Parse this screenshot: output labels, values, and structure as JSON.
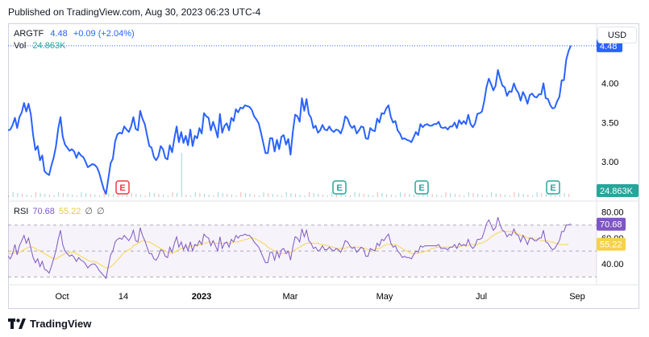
{
  "published": "Published on TradingView.com, Aug 30, 2023 06:23 UTC-4",
  "legend": {
    "symbol": "ARGTF",
    "price": "4.48",
    "change": "+0.09 (+2.04%)",
    "vol_label": "Vol",
    "vol_value": "24.863K"
  },
  "currency_button": "USD",
  "rsi_legend": {
    "label": "RSI",
    "rsi_value": "70.68",
    "ma_value": "55.22",
    "icon1": "∅",
    "icon2": "∅"
  },
  "footer": {
    "brand": "TradingView"
  },
  "colors": {
    "price_line": "#2962ff",
    "volume": "#26a69a",
    "rsi": "#7e57c2",
    "rsi_ma": "#f7d74b",
    "earnings_up": "#26a69a",
    "earnings_down": "#f23645"
  },
  "chart_data": [
    {
      "type": "line",
      "name": "price",
      "x_ticks": [
        "Oct",
        "14",
        "2023",
        "Mar",
        "May",
        "Jul",
        "Sep"
      ],
      "y_ticks": [
        "3.00",
        "3.50",
        "4.00"
      ],
      "ylim": [
        2.55,
        4.55
      ],
      "last_price_label": "4.48",
      "volume_label": "24.863K",
      "earnings_markers": [
        "E",
        "E",
        "E",
        "E"
      ],
      "values": [
        3.4,
        3.41,
        3.47,
        3.56,
        3.43,
        3.57,
        3.63,
        3.75,
        3.64,
        3.74,
        3.6,
        3.34,
        3.15,
        3.2,
        3.02,
        3.08,
        2.88,
        2.85,
        2.83,
        2.95,
        3.05,
        3.19,
        3.42,
        3.57,
        3.32,
        3.22,
        3.18,
        3.14,
        3.16,
        3.13,
        3.05,
        3.12,
        3.08,
        3.06,
        3.0,
        2.93,
        2.95,
        2.97,
        2.96,
        2.93,
        2.86,
        2.75,
        2.65,
        2.59,
        2.78,
        2.98,
        3.04,
        3.26,
        3.35,
        3.37,
        3.36,
        3.45,
        3.41,
        3.38,
        3.45,
        3.57,
        3.42,
        3.4,
        3.65,
        3.55,
        3.48,
        3.34,
        3.2,
        3.18,
        3.06,
        3.02,
        3.07,
        3.2,
        3.16,
        3.05,
        3.03,
        3.21,
        3.12,
        3.3,
        3.45,
        3.25,
        3.38,
        3.24,
        3.33,
        3.21,
        3.41,
        3.2,
        3.33,
        3.3,
        3.43,
        3.36,
        3.62,
        3.58,
        3.56,
        3.4,
        3.51,
        3.42,
        3.31,
        3.61,
        3.37,
        3.46,
        3.49,
        3.4,
        3.56,
        3.52,
        3.67,
        3.63,
        3.69,
        3.68,
        3.72,
        3.71,
        3.7,
        3.66,
        3.58,
        3.54,
        3.49,
        3.37,
        3.24,
        3.11,
        3.11,
        3.3,
        3.3,
        3.13,
        3.28,
        3.16,
        3.32,
        3.34,
        3.22,
        3.29,
        3.09,
        3.38,
        3.6,
        3.58,
        3.51,
        3.81,
        3.65,
        3.8,
        3.61,
        3.56,
        3.43,
        3.46,
        3.37,
        3.4,
        3.47,
        3.41,
        3.4,
        3.45,
        3.4,
        3.38,
        3.41,
        3.4,
        3.36,
        3.44,
        3.58,
        3.55,
        3.47,
        3.43,
        3.46,
        3.36,
        3.4,
        3.45,
        3.44,
        3.3,
        3.29,
        3.43,
        3.4,
        3.39,
        3.55,
        3.5,
        3.62,
        3.61,
        3.68,
        3.72,
        3.57,
        3.5,
        3.52,
        3.4,
        3.36,
        3.29,
        3.3,
        3.28,
        3.27,
        3.25,
        3.31,
        3.38,
        3.34,
        3.48,
        3.44,
        3.47,
        3.48,
        3.46,
        3.46,
        3.48,
        3.48,
        3.51,
        3.44,
        3.43,
        3.44,
        3.41,
        3.45,
        3.45,
        3.5,
        3.43,
        3.53,
        3.48,
        3.52,
        3.48,
        3.6,
        3.48,
        3.44,
        3.49,
        3.61,
        3.62,
        3.64,
        3.77,
        3.95,
        4.06,
        3.99,
        3.91,
        3.97,
        4.17,
        4.06,
        3.97,
        3.95,
        3.84,
        3.9,
        3.89,
        4.0,
        3.92,
        3.88,
        3.78,
        3.89,
        3.83,
        3.74,
        3.85,
        3.87,
        3.83,
        3.82,
        3.86,
        3.86,
        4.0,
        3.81,
        3.8,
        3.72,
        3.68,
        3.69,
        3.77,
        3.83,
        4.04,
        4.04,
        4.3,
        4.41,
        4.48
      ]
    },
    {
      "type": "line",
      "name": "RSI",
      "y_ticks": [
        "40.00",
        "60.00",
        "80.00"
      ],
      "ylim": [
        29,
        86
      ],
      "bands": [
        70,
        50,
        30
      ],
      "rsi_label": "70.68",
      "ma_label": "55.22",
      "series": [
        {
          "name": "RSI",
          "values": [
            46,
            44,
            48,
            55,
            47,
            54,
            58,
            62,
            56,
            60,
            52,
            45,
            41,
            44,
            38,
            42,
            36,
            35,
            33,
            38,
            44,
            50,
            59,
            66,
            55,
            50,
            48,
            46,
            47,
            45,
            42,
            45,
            43,
            42,
            40,
            37,
            39,
            40,
            40,
            38,
            35,
            33,
            31,
            29,
            38,
            47,
            50,
            57,
            59,
            60,
            59,
            62,
            60,
            58,
            61,
            66,
            58,
            57,
            68,
            62,
            58,
            53,
            48,
            48,
            44,
            43,
            46,
            51,
            50,
            46,
            45,
            53,
            49,
            56,
            61,
            53,
            57,
            51,
            55,
            50,
            57,
            50,
            55,
            54,
            58,
            55,
            63,
            61,
            60,
            54,
            58,
            54,
            50,
            61,
            52,
            56,
            57,
            53,
            59,
            57,
            62,
            60,
            62,
            62,
            63,
            62,
            62,
            60,
            57,
            55,
            53,
            49,
            45,
            41,
            41,
            49,
            49,
            43,
            50,
            45,
            51,
            52,
            48,
            50,
            43,
            53,
            61,
            60,
            57,
            67,
            61,
            66,
            58,
            56,
            52,
            53,
            50,
            51,
            54,
            51,
            51,
            53,
            51,
            50,
            52,
            51,
            49,
            53,
            58,
            57,
            54,
            52,
            53,
            49,
            51,
            53,
            52,
            46,
            46,
            52,
            51,
            50,
            56,
            54,
            59,
            58,
            61,
            63,
            56,
            53,
            54,
            50,
            48,
            45,
            46,
            45,
            45,
            44,
            47,
            50,
            49,
            54,
            53,
            54,
            54,
            54,
            54,
            54,
            54,
            55,
            52,
            52,
            52,
            51,
            53,
            53,
            55,
            52,
            56,
            54,
            55,
            54,
            59,
            54,
            52,
            54,
            59,
            59,
            60,
            65,
            71,
            74,
            70,
            66,
            68,
            76,
            70,
            66,
            65,
            61,
            63,
            62,
            67,
            63,
            62,
            57,
            62,
            59,
            55,
            60,
            60,
            58,
            58,
            60,
            60,
            66,
            57,
            56,
            53,
            51,
            52,
            55,
            58,
            65,
            65,
            70,
            70,
            71
          ]
        },
        {
          "name": "MA",
          "values": [
            48,
            48,
            48,
            49,
            49,
            49,
            50,
            51,
            52,
            53,
            53,
            53,
            52,
            51,
            50,
            49,
            48,
            47,
            46,
            45,
            44,
            44,
            45,
            46,
            47,
            48,
            48,
            49,
            49,
            49,
            48,
            47,
            46,
            45,
            44,
            43,
            42,
            42,
            42,
            41,
            40,
            39,
            38,
            37,
            37,
            38,
            39,
            41,
            43,
            45,
            47,
            49,
            50,
            51,
            52,
            54,
            55,
            56,
            57,
            58,
            58,
            57,
            57,
            56,
            55,
            54,
            53,
            52,
            51,
            50,
            49,
            49,
            48,
            49,
            50,
            51,
            52,
            52,
            53,
            53,
            54,
            54,
            54,
            54,
            55,
            55,
            56,
            56,
            57,
            57,
            57,
            56,
            56,
            56,
            56,
            56,
            56,
            56,
            56,
            57,
            57,
            57,
            58,
            58,
            59,
            59,
            60,
            60,
            60,
            59,
            58,
            57,
            56,
            55,
            53,
            52,
            51,
            50,
            49,
            48,
            48,
            48,
            48,
            49,
            49,
            50,
            51,
            52,
            53,
            54,
            55,
            56,
            56,
            56,
            56,
            56,
            56,
            55,
            55,
            55,
            54,
            54,
            53,
            53,
            52,
            52,
            52,
            52,
            52,
            53,
            53,
            53,
            53,
            53,
            53,
            52,
            52,
            52,
            51,
            51,
            51,
            51,
            52,
            52,
            53,
            54,
            55,
            55,
            55,
            55,
            55,
            54,
            53,
            52,
            51,
            50,
            49,
            48,
            48,
            48,
            48,
            49,
            49,
            50,
            50,
            51,
            52,
            52,
            53,
            53,
            53,
            53,
            53,
            53,
            53,
            53,
            53,
            53,
            53,
            54,
            54,
            54,
            54,
            55,
            55,
            55,
            55,
            56,
            56,
            57,
            58,
            59,
            61,
            62,
            63,
            64,
            65,
            65,
            65,
            65,
            65,
            65,
            64,
            64,
            63,
            62,
            62,
            61,
            60,
            60,
            59,
            59,
            59,
            59,
            58,
            58,
            58,
            58,
            57,
            57,
            56,
            56,
            55,
            55,
            55,
            55,
            55
          ]
        }
      ]
    }
  ]
}
